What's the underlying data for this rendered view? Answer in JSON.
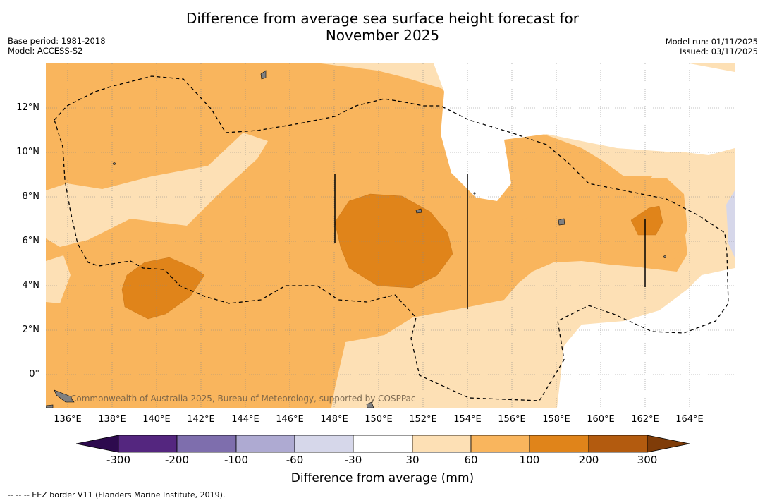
{
  "title_line1": "Difference from average sea surface height forecast for",
  "title_line2": "November 2025",
  "meta_left": {
    "base_period": "Base period: 1981-2018",
    "model": "Model: ACCESS-S2"
  },
  "meta_right": {
    "model_run": "Model run: 01/11/2025",
    "issued": "Issued: 03/11/2025"
  },
  "watermark": "Commonwealth of Australia 2025, Bureau of Meteorology, supported by COSPPac",
  "footer": "--  --  -- EEZ border V11 (Flanders Marine Institute, 2019).",
  "latitude_labels": [
    "12°N",
    "10°N",
    "8°N",
    "6°N",
    "4°N",
    "2°N",
    "0°"
  ],
  "longitude_labels": [
    "136°E",
    "138°E",
    "140°E",
    "142°E",
    "144°E",
    "146°E",
    "148°E",
    "150°E",
    "152°E",
    "154°E",
    "156°E",
    "158°E",
    "160°E",
    "162°E",
    "164°E"
  ],
  "colorbar": {
    "title": "Difference from average (mm)",
    "tick_labels": [
      "-300",
      "-200",
      "-100",
      "-60",
      "-30",
      "30",
      "60",
      "100",
      "200",
      "300"
    ],
    "colors": [
      "#2d0a4e",
      "#54267f",
      "#7e6ead",
      "#aeaad2",
      "#d6d7ea",
      "#ffffff",
      "#fde0b5",
      "#f9b55d",
      "#e0841a",
      "#b35b0f",
      "#7f3c08"
    ]
  },
  "legend": {
    "fill_colors": {
      "light": "#fde0b5",
      "medium": "#f9b55d",
      "dark": "#e0841a",
      "negative": "#d6d7ea",
      "neutral": "#ffffff",
      "land": "#808080"
    }
  }
}
